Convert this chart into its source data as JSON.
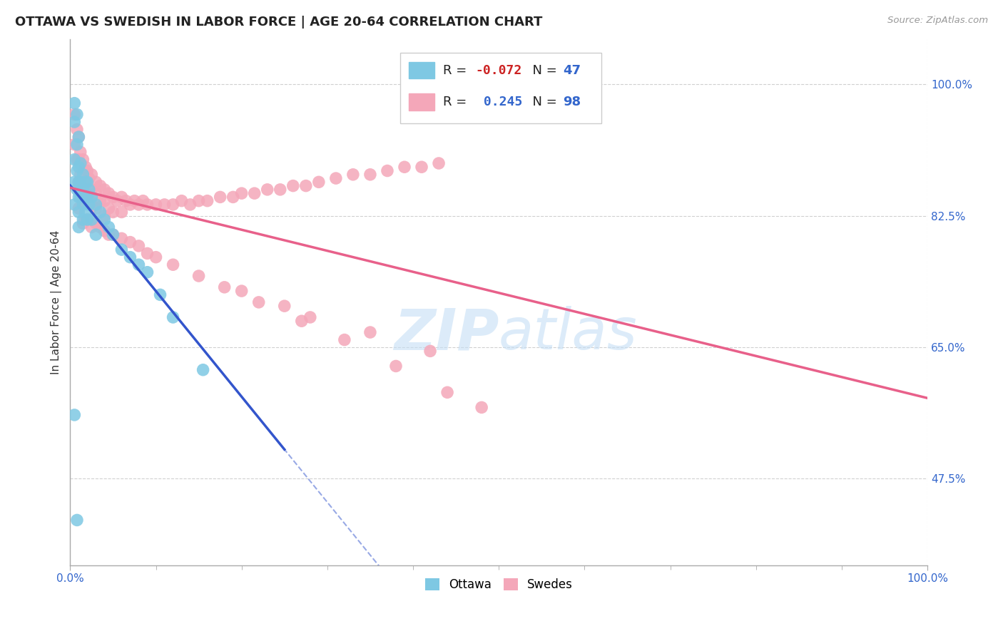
{
  "title": "OTTAWA VS SWEDISH IN LABOR FORCE | AGE 20-64 CORRELATION CHART",
  "source": "Source: ZipAtlas.com",
  "ylabel": "In Labor Force | Age 20-64",
  "xlim": [
    0.0,
    1.0
  ],
  "ylim": [
    0.36,
    1.06
  ],
  "y_ticks": [
    0.475,
    0.65,
    0.825,
    1.0
  ],
  "y_tick_labels": [
    "47.5%",
    "65.0%",
    "82.5%",
    "100.0%"
  ],
  "ottawa_color": "#7ec8e3",
  "swedes_color": "#f4a7b9",
  "ottawa_trend_color": "#3355cc",
  "swedes_trend_color": "#e8608a",
  "ottawa_r": -0.072,
  "swedes_r": 0.245,
  "background_color": "#ffffff",
  "grid_color": "#d0d0d0",
  "title_fontsize": 13,
  "axis_label_fontsize": 11,
  "tick_fontsize": 11,
  "watermark": "ZIPatlas",
  "ottawa_x": [
    0.005,
    0.005,
    0.005,
    0.005,
    0.005,
    0.008,
    0.008,
    0.008,
    0.008,
    0.01,
    0.01,
    0.01,
    0.01,
    0.01,
    0.01,
    0.012,
    0.012,
    0.012,
    0.015,
    0.015,
    0.015,
    0.015,
    0.018,
    0.018,
    0.018,
    0.02,
    0.02,
    0.02,
    0.022,
    0.022,
    0.025,
    0.025,
    0.03,
    0.03,
    0.035,
    0.04,
    0.045,
    0.05,
    0.06,
    0.07,
    0.08,
    0.09,
    0.105,
    0.12,
    0.155,
    0.005,
    0.008
  ],
  "ottawa_y": [
    0.975,
    0.95,
    0.9,
    0.87,
    0.84,
    0.96,
    0.92,
    0.885,
    0.86,
    0.93,
    0.89,
    0.87,
    0.85,
    0.83,
    0.81,
    0.895,
    0.87,
    0.85,
    0.88,
    0.86,
    0.84,
    0.82,
    0.87,
    0.85,
    0.83,
    0.87,
    0.85,
    0.82,
    0.86,
    0.84,
    0.85,
    0.82,
    0.84,
    0.8,
    0.83,
    0.82,
    0.81,
    0.8,
    0.78,
    0.77,
    0.76,
    0.75,
    0.72,
    0.69,
    0.62,
    0.56,
    0.42
  ],
  "swedes_x": [
    0.005,
    0.005,
    0.008,
    0.008,
    0.01,
    0.01,
    0.01,
    0.012,
    0.012,
    0.015,
    0.015,
    0.015,
    0.018,
    0.018,
    0.02,
    0.02,
    0.022,
    0.022,
    0.025,
    0.025,
    0.025,
    0.03,
    0.03,
    0.03,
    0.035,
    0.035,
    0.04,
    0.04,
    0.04,
    0.045,
    0.045,
    0.05,
    0.05,
    0.055,
    0.06,
    0.06,
    0.065,
    0.07,
    0.075,
    0.08,
    0.085,
    0.09,
    0.1,
    0.11,
    0.12,
    0.13,
    0.14,
    0.15,
    0.16,
    0.175,
    0.19,
    0.2,
    0.215,
    0.23,
    0.245,
    0.26,
    0.275,
    0.29,
    0.31,
    0.33,
    0.35,
    0.37,
    0.39,
    0.41,
    0.43,
    0.01,
    0.015,
    0.02,
    0.025,
    0.03,
    0.035,
    0.04,
    0.045,
    0.05,
    0.06,
    0.07,
    0.08,
    0.09,
    0.1,
    0.12,
    0.15,
    0.18,
    0.22,
    0.27,
    0.32,
    0.38,
    0.44,
    0.28,
    0.35,
    0.42,
    0.2,
    0.25,
    0.48
  ],
  "swedes_y": [
    0.96,
    0.92,
    0.94,
    0.9,
    0.93,
    0.9,
    0.87,
    0.91,
    0.88,
    0.9,
    0.87,
    0.845,
    0.89,
    0.86,
    0.885,
    0.855,
    0.875,
    0.85,
    0.88,
    0.86,
    0.84,
    0.87,
    0.855,
    0.835,
    0.865,
    0.845,
    0.86,
    0.845,
    0.825,
    0.855,
    0.835,
    0.85,
    0.83,
    0.845,
    0.85,
    0.83,
    0.845,
    0.84,
    0.845,
    0.84,
    0.845,
    0.84,
    0.84,
    0.84,
    0.84,
    0.845,
    0.84,
    0.845,
    0.845,
    0.85,
    0.85,
    0.855,
    0.855,
    0.86,
    0.86,
    0.865,
    0.865,
    0.87,
    0.875,
    0.88,
    0.88,
    0.885,
    0.89,
    0.89,
    0.895,
    0.835,
    0.815,
    0.82,
    0.81,
    0.815,
    0.81,
    0.805,
    0.8,
    0.8,
    0.795,
    0.79,
    0.785,
    0.775,
    0.77,
    0.76,
    0.745,
    0.73,
    0.71,
    0.685,
    0.66,
    0.625,
    0.59,
    0.69,
    0.67,
    0.645,
    0.725,
    0.705,
    0.57
  ]
}
